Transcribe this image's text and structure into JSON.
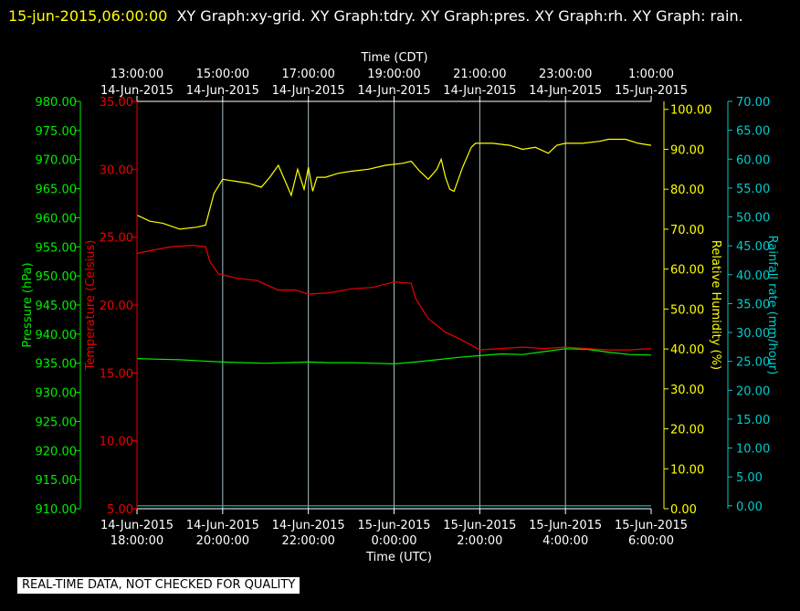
{
  "header": {
    "timestamp": "15-jun-2015,06:00:00",
    "graphs": "XY Graph:xy-grid.  XY Graph:tdry.  XY Graph:pres.  XY Graph:rh.  XY Graph: rain."
  },
  "footer": {
    "qc_notice": "REAL-TIME DATA, NOT CHECKED FOR QUALITY"
  },
  "colors": {
    "pressure": "#00ee00",
    "temperature": "#ee0000",
    "humidity": "#ffff00",
    "rain": "#00cccc",
    "grid": "#a8c0c8",
    "axis": "#ffffff"
  },
  "chart_data": {
    "type": "line",
    "grid": true,
    "x_top": {
      "label": "Time (CDT)",
      "ticks": [
        {
          "time": "13:00:00",
          "date": "14-Jun-2015"
        },
        {
          "time": "15:00:00",
          "date": "14-Jun-2015"
        },
        {
          "time": "17:00:00",
          "date": "14-Jun-2015"
        },
        {
          "time": "19:00:00",
          "date": "14-Jun-2015"
        },
        {
          "time": "21:00:00",
          "date": "14-Jun-2015"
        },
        {
          "time": "23:00:00",
          "date": "14-Jun-2015"
        },
        {
          "time": "1:00:00",
          "date": "15-Jun-2015"
        }
      ]
    },
    "x_bottom": {
      "label": "Time (UTC)",
      "ticks": [
        {
          "date": "14-Jun-2015",
          "time": "18:00:00"
        },
        {
          "date": "14-Jun-2015",
          "time": "20:00:00"
        },
        {
          "date": "14-Jun-2015",
          "time": "22:00:00"
        },
        {
          "date": "15-Jun-2015",
          "time": "0:00:00"
        },
        {
          "date": "15-Jun-2015",
          "time": "2:00:00"
        },
        {
          "date": "15-Jun-2015",
          "time": "4:00:00"
        },
        {
          "date": "15-Jun-2015",
          "time": "6:00:00"
        }
      ]
    },
    "x_unit": "hours UTC from 14-Jun-2015 18:00",
    "xlim": [
      0,
      12
    ],
    "axes": {
      "pressure": {
        "label": "Pressure (hPa)",
        "ylim": [
          910,
          980
        ],
        "ticks": [
          "910.00",
          "915.00",
          "920.00",
          "925.00",
          "930.00",
          "935.00",
          "940.00",
          "945.00",
          "950.00",
          "955.00",
          "960.00",
          "965.00",
          "970.00",
          "975.00",
          "980.00"
        ]
      },
      "temperature": {
        "label": "Temperature (Celsius)",
        "ylim": [
          5,
          35
        ],
        "ticks": [
          "5.00",
          "10.00",
          "15.00",
          "20.00",
          "25.00",
          "30.00",
          "35.00"
        ]
      },
      "humidity": {
        "label": "Relative Humidity (%)",
        "ylim": [
          0,
          102
        ],
        "ticks": [
          "0.00",
          "10.00",
          "20.00",
          "30.00",
          "40.00",
          "50.00",
          "60.00",
          "70.00",
          "80.00",
          "90.00",
          "100.00"
        ]
      },
      "rain": {
        "label": "Rainfall rate (mm/hour)",
        "ylim": [
          -0.5,
          70
        ],
        "ticks": [
          "0.00",
          "5.00",
          "10.00",
          "15.00",
          "20.00",
          "25.00",
          "30.00",
          "35.00",
          "40.00",
          "45.00",
          "50.00",
          "55.00",
          "60.00",
          "65.00",
          "70.00"
        ]
      }
    },
    "series": [
      {
        "name": "pres",
        "axis": "pressure",
        "x": [
          0,
          0.5,
          1,
          1.5,
          2,
          2.5,
          3,
          3.5,
          4,
          4.5,
          5,
          5.5,
          6,
          6.5,
          7,
          7.5,
          8,
          8.5,
          9,
          9.5,
          10,
          10.5,
          11,
          11.5,
          12
        ],
        "y": [
          935.8,
          935.7,
          935.6,
          935.4,
          935.2,
          935.1,
          935.0,
          935.1,
          935.2,
          935.1,
          935.1,
          935.0,
          934.9,
          935.2,
          935.6,
          936.0,
          936.3,
          936.6,
          936.5,
          937.0,
          937.5,
          937.4,
          936.9,
          936.5,
          936.4
        ]
      },
      {
        "name": "tdry",
        "axis": "temperature",
        "x": [
          0,
          0.3,
          0.8,
          1.3,
          1.6,
          1.7,
          1.9,
          2.3,
          2.8,
          3.3,
          3.7,
          4.0,
          4.5,
          5.0,
          5.5,
          6.0,
          6.4,
          6.5,
          6.8,
          7.2,
          7.6,
          8.0,
          8.5,
          9.0,
          9.5,
          10.0,
          10.5,
          11.0,
          11.5,
          12.0
        ],
        "y": [
          23.8,
          24.0,
          24.3,
          24.4,
          24.3,
          23.2,
          22.3,
          22.0,
          21.8,
          21.1,
          21.1,
          20.8,
          20.9,
          21.2,
          21.3,
          21.7,
          21.6,
          20.5,
          19.0,
          18.0,
          17.4,
          16.7,
          16.8,
          16.9,
          16.8,
          16.9,
          16.8,
          16.7,
          16.7,
          16.8
        ]
      },
      {
        "name": "rh",
        "axis": "humidity",
        "x": [
          0,
          0.3,
          0.6,
          1.0,
          1.4,
          1.6,
          1.8,
          2.0,
          2.3,
          2.6,
          2.9,
          3.1,
          3.3,
          3.5,
          3.6,
          3.75,
          3.9,
          4.0,
          4.1,
          4.2,
          4.4,
          4.7,
          5.0,
          5.4,
          5.8,
          6.2,
          6.4,
          6.6,
          6.8,
          7.0,
          7.1,
          7.2,
          7.3,
          7.4,
          7.5,
          7.6,
          7.8,
          7.9,
          8.0,
          8.3,
          8.7,
          9.0,
          9.3,
          9.6,
          9.8,
          10.0,
          10.4,
          10.8,
          11.0,
          11.4,
          11.7,
          12.0
        ],
        "y": [
          73.5,
          72.0,
          71.5,
          70.0,
          70.5,
          71.0,
          79.0,
          82.5,
          82.0,
          81.5,
          80.5,
          83.0,
          86.0,
          81.0,
          78.5,
          85.0,
          80.0,
          85.5,
          79.5,
          83.0,
          83.0,
          84.0,
          84.5,
          85.0,
          86.0,
          86.5,
          87.0,
          84.5,
          82.5,
          85.0,
          87.5,
          83.0,
          80.0,
          79.5,
          82.5,
          85.5,
          90.5,
          91.5,
          91.5,
          91.5,
          91.0,
          90.0,
          90.5,
          89.0,
          91.0,
          91.5,
          91.5,
          92.0,
          92.5,
          92.5,
          91.5,
          91.0
        ]
      },
      {
        "name": "rain",
        "axis": "rain",
        "x": [
          0,
          12
        ],
        "y": [
          0,
          0
        ]
      }
    ]
  }
}
